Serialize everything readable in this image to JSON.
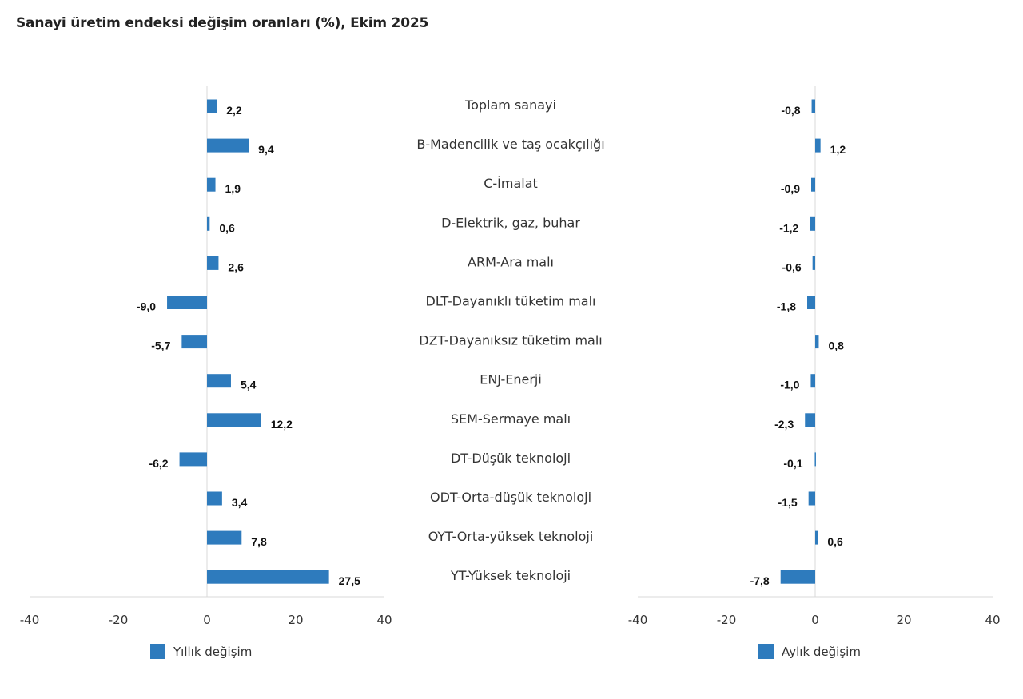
{
  "title": "Sanayi üretim endeksi değişim oranları (%), Ekim 2025",
  "chart_data": {
    "type": "bar",
    "orientation": "horizontal",
    "title": "Sanayi üretim endeksi değişim oranları (%), Ekim 2025",
    "categories": [
      "Toplam sanayi",
      "B-Madencilik ve taş ocakçılığı",
      "C-İmalat",
      "D-Elektrik, gaz, buhar",
      "ARM-Ara malı",
      "DLT-Dayanıklı tüketim malı",
      "DZT-Dayanıksız tüketim malı",
      "ENJ-Enerji",
      "SEM-Sermaye malı",
      "DT-Düşük teknoloji",
      "ODT-Orta-düşük teknoloji",
      "OYT-Orta-yüksek teknoloji",
      "YT-Yüksek teknoloji"
    ],
    "series": [
      {
        "name": "Yıllık değişim",
        "panel": "left",
        "color": "#2e7bbd",
        "values": [
          2.2,
          9.4,
          1.9,
          0.6,
          2.6,
          -9.0,
          -5.7,
          5.4,
          12.2,
          -6.2,
          3.4,
          7.8,
          27.5
        ],
        "labels": [
          "2,2",
          "9,4",
          "1,9",
          "0,6",
          "2,6",
          "-9,0",
          "-5,7",
          "5,4",
          "12,2",
          "-6,2",
          "3,4",
          "7,8",
          "27,5"
        ]
      },
      {
        "name": "Aylık değişim",
        "panel": "right",
        "color": "#2e7bbd",
        "values": [
          -0.8,
          1.2,
          -0.9,
          -1.2,
          -0.6,
          -1.8,
          0.8,
          -1.0,
          -2.3,
          -0.1,
          -1.5,
          0.6,
          -7.8
        ],
        "labels": [
          "-0,8",
          "1,2",
          "-0,9",
          "-1,2",
          "-0,6",
          "-1,8",
          "0,8",
          "-1,0",
          "-2,3",
          "-0,1",
          "-1,5",
          "0,6",
          "-7,8"
        ]
      }
    ],
    "xlim": [
      -40,
      40
    ],
    "xticks": [
      -40,
      -20,
      0,
      20,
      40
    ],
    "xtick_labels": [
      "-40",
      "-20",
      "0",
      "20",
      "40"
    ],
    "xlabel": "",
    "ylabel": "",
    "grid": false,
    "legend": [
      "Yıllık değişim",
      "Aylık değişim"
    ],
    "legend_position": "bottom"
  }
}
